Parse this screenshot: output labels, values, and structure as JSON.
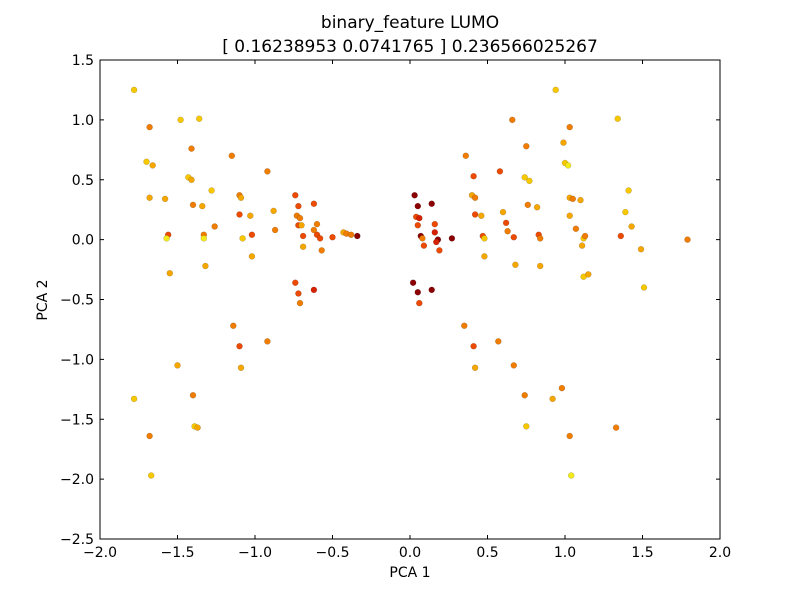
{
  "chart_data": {
    "type": "scatter",
    "title": "binary_feature LUMO",
    "subtitle": "[ 0.16238953  0.0741765 ] 0.236566025267",
    "xlabel": "PCA 1",
    "ylabel": "PCA 2",
    "xlim": [
      -2.0,
      2.0
    ],
    "ylim": [
      -2.5,
      1.5
    ],
    "x_ticks": [
      -2.0,
      -1.5,
      -1.0,
      -0.5,
      0.0,
      0.5,
      1.0,
      1.5,
      2.0
    ],
    "x_tick_labels": [
      "−2.0",
      "−1.5",
      "−1.0",
      "−0.5",
      "0.0",
      "0.5",
      "1.0",
      "1.5",
      "2.0"
    ],
    "y_ticks": [
      -2.5,
      -2.0,
      -1.5,
      -1.0,
      -0.5,
      0.0,
      0.5,
      1.0,
      1.5
    ],
    "y_tick_labels": [
      "−2.5",
      "−2.0",
      "−1.5",
      "−1.0",
      "−0.5",
      "0.0",
      "0.5",
      "1.0",
      "1.5"
    ],
    "grid": false,
    "colormap": "hot",
    "colors": {
      "dark_red": "#8b0000",
      "red": "#d62000",
      "orange_red": "#ec4a00",
      "orange": "#f07c00",
      "amber": "#f5a700",
      "gold": "#f7c800",
      "yellow": "#f2ea1a"
    },
    "points": [
      {
        "x": -1.78,
        "y": 1.25,
        "c": "gold"
      },
      {
        "x": -1.7,
        "y": 0.65,
        "c": "gold"
      },
      {
        "x": -1.68,
        "y": 0.94,
        "c": "orange"
      },
      {
        "x": -1.66,
        "y": 0.62,
        "c": "amber"
      },
      {
        "x": -1.68,
        "y": 0.35,
        "c": "amber"
      },
      {
        "x": -1.58,
        "y": 0.34,
        "c": "amber"
      },
      {
        "x": -1.56,
        "y": 0.04,
        "c": "orange_red"
      },
      {
        "x": -1.57,
        "y": 0.01,
        "c": "yellow"
      },
      {
        "x": -1.55,
        "y": -0.28,
        "c": "amber"
      },
      {
        "x": -1.48,
        "y": 1.0,
        "c": "gold"
      },
      {
        "x": -1.43,
        "y": 0.52,
        "c": "gold"
      },
      {
        "x": -1.41,
        "y": 0.76,
        "c": "orange"
      },
      {
        "x": -1.41,
        "y": 0.5,
        "c": "amber"
      },
      {
        "x": -1.4,
        "y": 0.29,
        "c": "orange"
      },
      {
        "x": -1.36,
        "y": 1.01,
        "c": "gold"
      },
      {
        "x": -1.34,
        "y": 0.28,
        "c": "amber"
      },
      {
        "x": -1.33,
        "y": 0.04,
        "c": "orange"
      },
      {
        "x": -1.33,
        "y": 0.01,
        "c": "yellow"
      },
      {
        "x": -1.32,
        "y": -0.22,
        "c": "amber"
      },
      {
        "x": -1.28,
        "y": 0.41,
        "c": "gold"
      },
      {
        "x": -1.26,
        "y": 0.11,
        "c": "orange"
      },
      {
        "x": -1.15,
        "y": 0.7,
        "c": "orange"
      },
      {
        "x": -1.1,
        "y": 0.37,
        "c": "orange"
      },
      {
        "x": -1.09,
        "y": 0.35,
        "c": "amber"
      },
      {
        "x": -1.1,
        "y": 0.21,
        "c": "orange_red"
      },
      {
        "x": -1.08,
        "y": 0.01,
        "c": "gold"
      },
      {
        "x": -1.03,
        "y": 0.2,
        "c": "amber"
      },
      {
        "x": -1.02,
        "y": 0.04,
        "c": "orange_red"
      },
      {
        "x": -1.02,
        "y": -0.14,
        "c": "amber"
      },
      {
        "x": -0.92,
        "y": 0.57,
        "c": "orange"
      },
      {
        "x": -0.88,
        "y": 0.24,
        "c": "amber"
      },
      {
        "x": -0.87,
        "y": 0.08,
        "c": "orange"
      },
      {
        "x": -0.74,
        "y": 0.37,
        "c": "orange_red"
      },
      {
        "x": -0.72,
        "y": 0.28,
        "c": "orange_red"
      },
      {
        "x": -0.73,
        "y": 0.2,
        "c": "orange"
      },
      {
        "x": -0.71,
        "y": 0.18,
        "c": "orange"
      },
      {
        "x": -0.72,
        "y": 0.12,
        "c": "orange_red"
      },
      {
        "x": -0.7,
        "y": 0.12,
        "c": "amber"
      },
      {
        "x": -0.69,
        "y": 0.03,
        "c": "orange_red"
      },
      {
        "x": -0.69,
        "y": -0.06,
        "c": "amber"
      },
      {
        "x": -0.62,
        "y": 0.3,
        "c": "orange_red"
      },
      {
        "x": -0.62,
        "y": 0.08,
        "c": "orange"
      },
      {
        "x": -0.6,
        "y": 0.13,
        "c": "orange"
      },
      {
        "x": -0.6,
        "y": 0.04,
        "c": "orange_red"
      },
      {
        "x": -0.58,
        "y": 0.01,
        "c": "orange_red"
      },
      {
        "x": -0.57,
        "y": -0.09,
        "c": "orange"
      },
      {
        "x": -0.5,
        "y": 0.02,
        "c": "orange_red"
      },
      {
        "x": -0.43,
        "y": 0.06,
        "c": "amber"
      },
      {
        "x": -0.41,
        "y": 0.05,
        "c": "orange"
      },
      {
        "x": -0.38,
        "y": 0.04,
        "c": "orange"
      },
      {
        "x": -0.34,
        "y": 0.03,
        "c": "dark_red"
      },
      {
        "x": -0.74,
        "y": -0.36,
        "c": "orange_red"
      },
      {
        "x": -0.72,
        "y": -0.45,
        "c": "orange_red"
      },
      {
        "x": -0.71,
        "y": -0.53,
        "c": "orange"
      },
      {
        "x": -0.62,
        "y": -0.42,
        "c": "red"
      },
      {
        "x": -1.14,
        "y": -0.72,
        "c": "orange"
      },
      {
        "x": -1.1,
        "y": -0.89,
        "c": "orange_red"
      },
      {
        "x": -1.09,
        "y": -1.07,
        "c": "amber"
      },
      {
        "x": -0.92,
        "y": -0.85,
        "c": "orange"
      },
      {
        "x": -1.5,
        "y": -1.05,
        "c": "amber"
      },
      {
        "x": -1.4,
        "y": -1.3,
        "c": "orange"
      },
      {
        "x": -1.39,
        "y": -1.56,
        "c": "gold"
      },
      {
        "x": -1.37,
        "y": -1.57,
        "c": "amber"
      },
      {
        "x": -1.78,
        "y": -1.33,
        "c": "gold"
      },
      {
        "x": -1.68,
        "y": -1.64,
        "c": "orange"
      },
      {
        "x": -1.67,
        "y": -1.97,
        "c": "gold"
      },
      {
        "x": 0.03,
        "y": 0.37,
        "c": "dark_red"
      },
      {
        "x": 0.05,
        "y": 0.28,
        "c": "dark_red"
      },
      {
        "x": 0.04,
        "y": 0.19,
        "c": "orange_red"
      },
      {
        "x": 0.06,
        "y": 0.18,
        "c": "red"
      },
      {
        "x": 0.05,
        "y": 0.12,
        "c": "orange_red"
      },
      {
        "x": 0.07,
        "y": 0.03,
        "c": "dark_red"
      },
      {
        "x": 0.08,
        "y": 0.01,
        "c": "orange"
      },
      {
        "x": 0.09,
        "y": -0.05,
        "c": "orange_red"
      },
      {
        "x": 0.14,
        "y": 0.3,
        "c": "dark_red"
      },
      {
        "x": 0.16,
        "y": 0.13,
        "c": "orange_red"
      },
      {
        "x": 0.16,
        "y": 0.06,
        "c": "red"
      },
      {
        "x": 0.18,
        "y": 0.0,
        "c": "dark_red"
      },
      {
        "x": 0.17,
        "y": -0.02,
        "c": "red"
      },
      {
        "x": 0.19,
        "y": -0.09,
        "c": "orange_red"
      },
      {
        "x": 0.27,
        "y": 0.01,
        "c": "dark_red"
      },
      {
        "x": 0.02,
        "y": -0.36,
        "c": "dark_red"
      },
      {
        "x": 0.05,
        "y": -0.44,
        "c": "dark_red"
      },
      {
        "x": 0.06,
        "y": -0.53,
        "c": "orange_red"
      },
      {
        "x": 0.14,
        "y": -0.42,
        "c": "dark_red"
      },
      {
        "x": 0.36,
        "y": 0.7,
        "c": "orange"
      },
      {
        "x": 0.4,
        "y": 0.37,
        "c": "amber"
      },
      {
        "x": 0.42,
        "y": 0.35,
        "c": "orange"
      },
      {
        "x": 0.42,
        "y": 0.21,
        "c": "orange_red"
      },
      {
        "x": 0.41,
        "y": 0.53,
        "c": "orange_red"
      },
      {
        "x": 0.46,
        "y": 0.2,
        "c": "amber"
      },
      {
        "x": 0.47,
        "y": 0.03,
        "c": "orange_red"
      },
      {
        "x": 0.48,
        "y": 0.01,
        "c": "gold"
      },
      {
        "x": 0.48,
        "y": -0.14,
        "c": "amber"
      },
      {
        "x": 0.58,
        "y": 0.57,
        "c": "orange_red"
      },
      {
        "x": 0.6,
        "y": 0.23,
        "c": "amber"
      },
      {
        "x": 0.62,
        "y": 0.14,
        "c": "orange_red"
      },
      {
        "x": 0.63,
        "y": 0.07,
        "c": "orange"
      },
      {
        "x": 0.67,
        "y": 0.02,
        "c": "orange_red"
      },
      {
        "x": 0.68,
        "y": -0.21,
        "c": "amber"
      },
      {
        "x": 0.66,
        "y": 1.0,
        "c": "orange"
      },
      {
        "x": 0.74,
        "y": 0.52,
        "c": "gold"
      },
      {
        "x": 0.75,
        "y": 0.78,
        "c": "orange"
      },
      {
        "x": 0.77,
        "y": 0.49,
        "c": "gold"
      },
      {
        "x": 0.76,
        "y": 0.29,
        "c": "orange"
      },
      {
        "x": 0.82,
        "y": 0.27,
        "c": "amber"
      },
      {
        "x": 0.83,
        "y": 0.04,
        "c": "orange_red"
      },
      {
        "x": 0.84,
        "y": 0.01,
        "c": "orange"
      },
      {
        "x": 0.84,
        "y": -0.22,
        "c": "amber"
      },
      {
        "x": 0.94,
        "y": 1.25,
        "c": "gold"
      },
      {
        "x": 0.99,
        "y": 0.81,
        "c": "amber"
      },
      {
        "x": 1.0,
        "y": 0.64,
        "c": "gold"
      },
      {
        "x": 1.02,
        "y": 0.62,
        "c": "yellow"
      },
      {
        "x": 1.03,
        "y": 0.94,
        "c": "orange"
      },
      {
        "x": 1.03,
        "y": 0.35,
        "c": "amber"
      },
      {
        "x": 1.05,
        "y": 0.34,
        "c": "orange"
      },
      {
        "x": 1.03,
        "y": 0.2,
        "c": "amber"
      },
      {
        "x": 1.07,
        "y": 0.09,
        "c": "orange"
      },
      {
        "x": 1.1,
        "y": 0.33,
        "c": "amber"
      },
      {
        "x": 1.12,
        "y": 0.01,
        "c": "gold"
      },
      {
        "x": 1.13,
        "y": 0.03,
        "c": "orange"
      },
      {
        "x": 1.11,
        "y": -0.05,
        "c": "amber"
      },
      {
        "x": 1.12,
        "y": -0.31,
        "c": "gold"
      },
      {
        "x": 1.15,
        "y": -0.29,
        "c": "amber"
      },
      {
        "x": 1.34,
        "y": 1.01,
        "c": "gold"
      },
      {
        "x": 1.36,
        "y": 0.03,
        "c": "orange_red"
      },
      {
        "x": 1.39,
        "y": 0.23,
        "c": "gold"
      },
      {
        "x": 1.41,
        "y": 0.41,
        "c": "gold"
      },
      {
        "x": 1.43,
        "y": 0.11,
        "c": "amber"
      },
      {
        "x": 1.49,
        "y": -0.08,
        "c": "amber"
      },
      {
        "x": 1.51,
        "y": -0.4,
        "c": "gold"
      },
      {
        "x": 1.79,
        "y": 0.0,
        "c": "orange"
      },
      {
        "x": 0.35,
        "y": -0.72,
        "c": "orange"
      },
      {
        "x": 0.41,
        "y": -0.89,
        "c": "orange_red"
      },
      {
        "x": 0.42,
        "y": -1.07,
        "c": "amber"
      },
      {
        "x": 0.57,
        "y": -0.85,
        "c": "orange"
      },
      {
        "x": 0.67,
        "y": -1.05,
        "c": "orange"
      },
      {
        "x": 0.74,
        "y": -1.3,
        "c": "orange"
      },
      {
        "x": 0.75,
        "y": -1.56,
        "c": "gold"
      },
      {
        "x": 0.92,
        "y": -1.33,
        "c": "amber"
      },
      {
        "x": 0.98,
        "y": -1.24,
        "c": "orange"
      },
      {
        "x": 1.03,
        "y": -1.64,
        "c": "orange"
      },
      {
        "x": 1.04,
        "y": -1.97,
        "c": "yellow"
      },
      {
        "x": 1.33,
        "y": -1.57,
        "c": "orange"
      }
    ]
  }
}
